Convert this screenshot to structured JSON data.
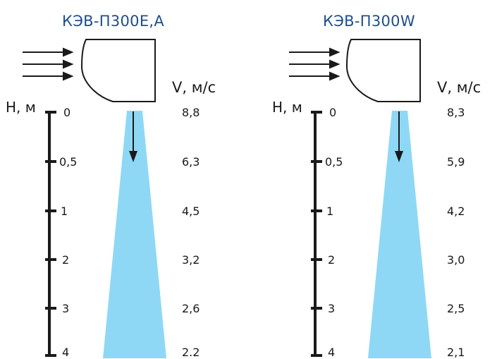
{
  "panels": [
    {
      "title": "КЭВ-П300E,A",
      "h_axis_label": "H, м",
      "v_axis_label": "V, м/с",
      "heights": [
        "0",
        "0,5",
        "1",
        "2",
        "3",
        "4"
      ],
      "velocities": [
        "8,8",
        "6,3",
        "4,5",
        "3,2",
        "2,6",
        "2.2"
      ]
    },
    {
      "title": "КЭВ-П300W",
      "h_axis_label": "H, м",
      "v_axis_label": "V, м/с",
      "heights": [
        "0",
        "0,5",
        "1",
        "2",
        "3",
        "4"
      ],
      "velocities": [
        "8,3",
        "5,9",
        "4,2",
        "3,0",
        "2,5",
        "2,1"
      ]
    }
  ],
  "colors": {
    "title": "#1f4e8c",
    "airflow": "#8ed8f5",
    "line": "#1a1a1a"
  }
}
